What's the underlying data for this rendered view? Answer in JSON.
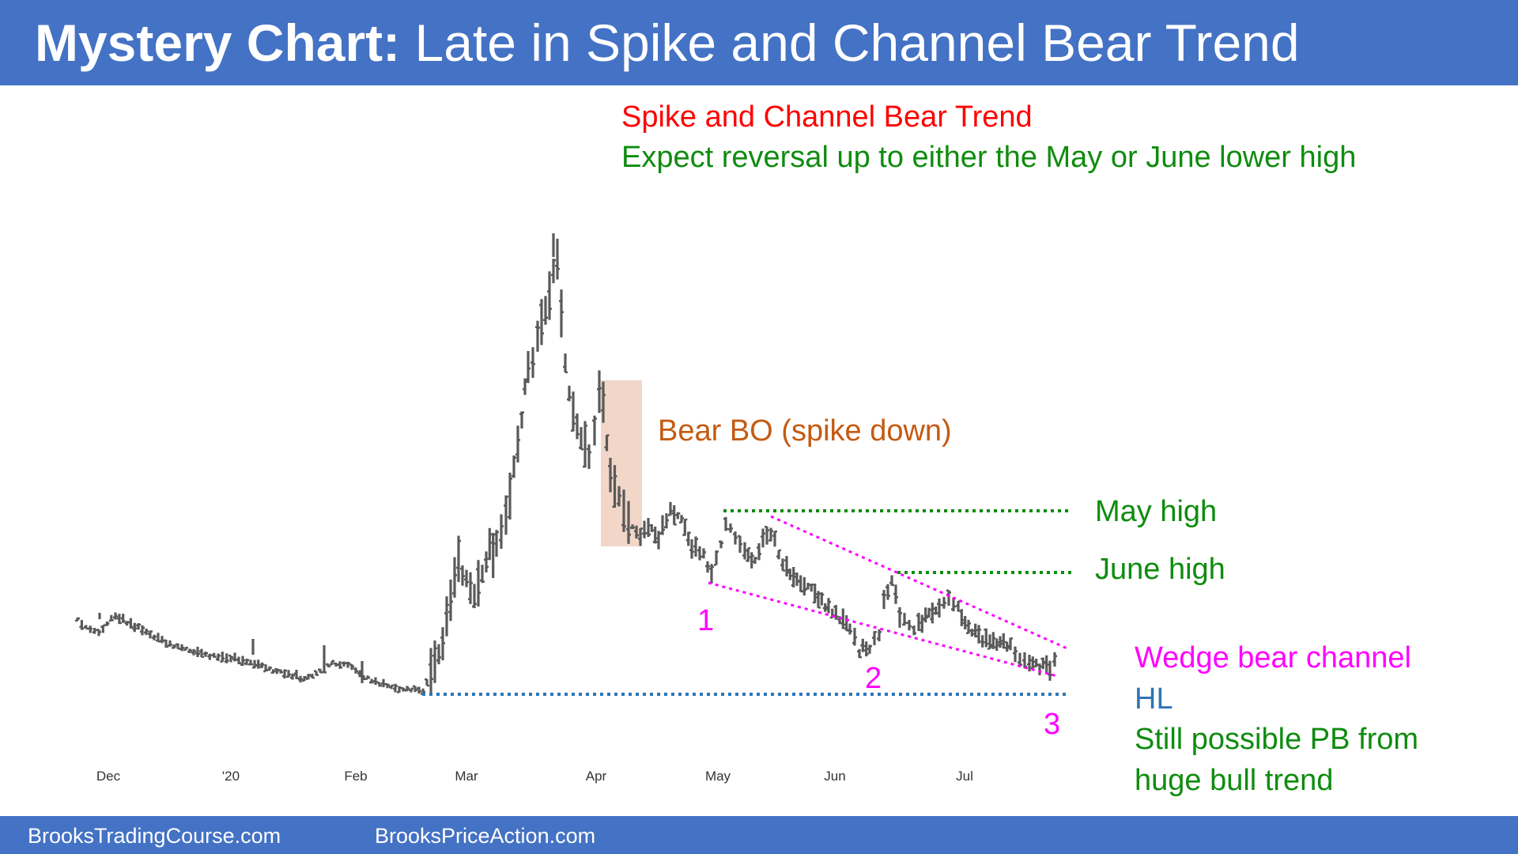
{
  "header": {
    "title_bold": "Mystery Chart:",
    "title_rest": "Late in Spike and Channel Bear Trend"
  },
  "footer": {
    "left": "BrooksTradingCourse.com",
    "right": "BrooksPriceAction.com"
  },
  "colors": {
    "header_bg": "#4472c4",
    "bars": "#595959",
    "red": "#ff0000",
    "green": "#0f8c0f",
    "orange": "#c55a11",
    "magenta": "#ff00ff",
    "blue": "#2e75b6",
    "spike_box": "#f2d6c8"
  },
  "annotations": {
    "headline": "Spike and Channel Bear Trend",
    "expectation": "Expect reversal up to either the May or June lower high",
    "spike": "Bear BO (spike down)",
    "may_high": "May high",
    "june_high": "June high",
    "wedge": "Wedge bear channel",
    "hl": "HL",
    "pb_line1": "Still possible PB from",
    "pb_line2": "huge bull trend",
    "push1": "1",
    "push2": "2",
    "push3": "3"
  },
  "chart_data": {
    "type": "ohlc",
    "x_tick_labels": [
      "Dec",
      "'20",
      "Feb",
      "Mar",
      "Apr",
      "May",
      "Jun",
      "Jul"
    ],
    "y_axis": "none shown",
    "approx_price_path_relative_to_feb_low": [
      {
        "point": "Dec start",
        "value": 1.5
      },
      {
        "point": "Feb low (HL)",
        "value": 1.0
      },
      {
        "point": "late Mar peak",
        "value": 7.2
      },
      {
        "point": "early Apr",
        "value": 4.8
      },
      {
        "point": "mid Apr after spike down",
        "value": 2.6
      },
      {
        "point": "May high",
        "value": 2.9
      },
      {
        "point": "push 1",
        "value": 1.9
      },
      {
        "point": "push 2 (Jun low)",
        "value": 1.4
      },
      {
        "point": "June high",
        "value": 2.1
      },
      {
        "point": "push 3 (late Jul)",
        "value": 1.2
      }
    ]
  }
}
